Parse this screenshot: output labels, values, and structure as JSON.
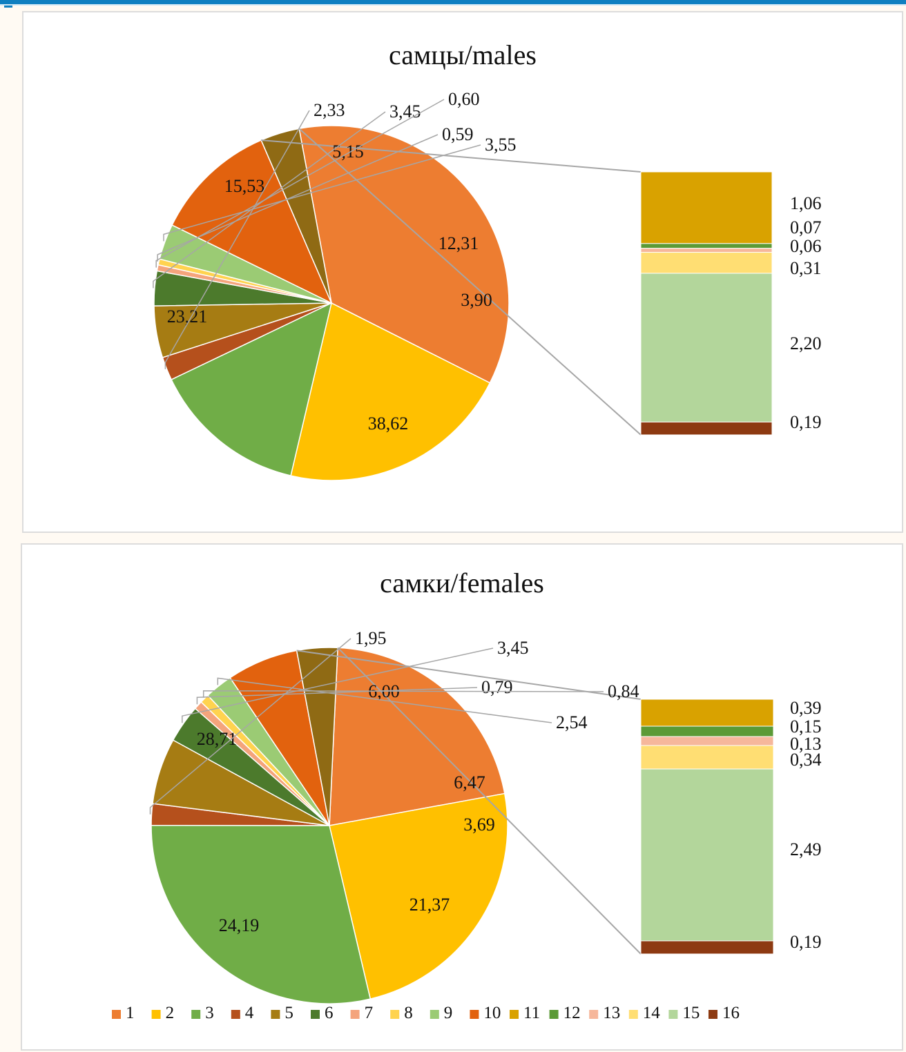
{
  "legend": {
    "items": [
      {
        "label": "1",
        "color": "#ed7d31"
      },
      {
        "label": "2",
        "color": "#ffc000"
      },
      {
        "label": "3",
        "color": "#70ad47"
      },
      {
        "label": "4",
        "color": "#b5501c"
      },
      {
        "label": "5",
        "color": "#a67c13"
      },
      {
        "label": "6",
        "color": "#4c7a2c"
      },
      {
        "label": "7",
        "color": "#f4a47c"
      },
      {
        "label": "8",
        "color": "#ffd34f"
      },
      {
        "label": "9",
        "color": "#9bcb74"
      },
      {
        "label": "10",
        "color": "#e2620e"
      },
      {
        "label": "11",
        "color": "#d9a200"
      },
      {
        "label": "12",
        "color": "#5b9a36"
      },
      {
        "label": "13",
        "color": "#f6b79b"
      },
      {
        "label": "14",
        "color": "#ffde73"
      },
      {
        "label": "15",
        "color": "#b3d69b"
      },
      {
        "label": "16",
        "color": "#8d3a12"
      }
    ]
  },
  "chart_data": [
    {
      "type": "pie",
      "subtype": "pie-of-bar",
      "title": "самцы/males",
      "pie": [
        {
          "category": "1",
          "value": 38.62,
          "label": "38,62"
        },
        {
          "category": "2",
          "value": 23.21,
          "label": "23,21"
        },
        {
          "category": "3",
          "value": 15.53,
          "label": "15,53"
        },
        {
          "category": "4",
          "value": 2.33,
          "label": "2,33"
        },
        {
          "category": "5",
          "value": 5.15,
          "label": "5,15"
        },
        {
          "category": "6",
          "value": 3.45,
          "label": "3,45"
        },
        {
          "category": "7",
          "value": 0.6,
          "label": "0,60"
        },
        {
          "category": "8",
          "value": 0.59,
          "label": "0,59"
        },
        {
          "category": "9",
          "value": 3.55,
          "label": "3,55"
        },
        {
          "category": "10",
          "value": 12.31,
          "label": "12,31"
        },
        {
          "category": "other",
          "value": 3.9,
          "label": "3,90"
        }
      ],
      "bar": [
        {
          "category": "11",
          "value": 1.06,
          "label": "1,06"
        },
        {
          "category": "12",
          "value": 0.07,
          "label": "0,07"
        },
        {
          "category": "13",
          "value": 0.06,
          "label": "0,06"
        },
        {
          "category": "14",
          "value": 0.31,
          "label": "0,31"
        },
        {
          "category": "15",
          "value": 2.2,
          "label": "2,20"
        },
        {
          "category": "16",
          "value": 0.19,
          "label": "0,19"
        }
      ]
    },
    {
      "type": "pie",
      "subtype": "pie-of-bar",
      "title": "самки/females",
      "pie": [
        {
          "category": "1",
          "value": 21.37,
          "label": "21,37"
        },
        {
          "category": "2",
          "value": 24.19,
          "label": "24,19"
        },
        {
          "category": "3",
          "value": 28.71,
          "label": "28,71"
        },
        {
          "category": "4",
          "value": 1.95,
          "label": "1,95"
        },
        {
          "category": "5",
          "value": 6.0,
          "label": "6,00"
        },
        {
          "category": "6",
          "value": 3.45,
          "label": "3,45"
        },
        {
          "category": "7",
          "value": 0.79,
          "label": "0,79"
        },
        {
          "category": "8",
          "value": 0.84,
          "label": "0,84"
        },
        {
          "category": "9",
          "value": 2.54,
          "label": "2,54"
        },
        {
          "category": "10",
          "value": 6.47,
          "label": "6,47"
        },
        {
          "category": "other",
          "value": 3.69,
          "label": "3,69"
        }
      ],
      "bar": [
        {
          "category": "11",
          "value": 0.39,
          "label": "0,39"
        },
        {
          "category": "12",
          "value": 0.15,
          "label": "0,15"
        },
        {
          "category": "13",
          "value": 0.13,
          "label": "0,13"
        },
        {
          "category": "14",
          "value": 0.34,
          "label": "0,34"
        },
        {
          "category": "15",
          "value": 2.49,
          "label": "2,49"
        },
        {
          "category": "16",
          "value": 0.19,
          "label": "0,19"
        }
      ]
    }
  ]
}
